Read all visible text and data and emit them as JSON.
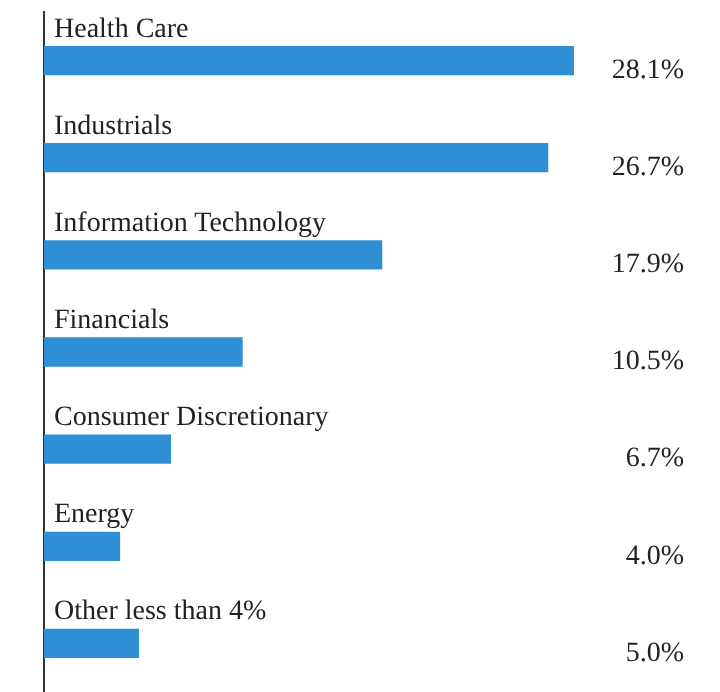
{
  "chart_data": {
    "type": "bar",
    "orientation": "horizontal",
    "categories": [
      "Health Care",
      "Industrials",
      "Information Technology",
      "Financials",
      "Consumer Discretionary",
      "Energy",
      "Other less than 4%"
    ],
    "values": [
      28.1,
      26.7,
      17.9,
      10.5,
      6.7,
      4.0,
      5.0
    ],
    "value_labels": [
      "28.1%",
      "26.7%",
      "17.9%",
      "10.5%",
      "6.7%",
      "4.0%",
      "5.0%"
    ],
    "color": "#2e8fd6"
  }
}
